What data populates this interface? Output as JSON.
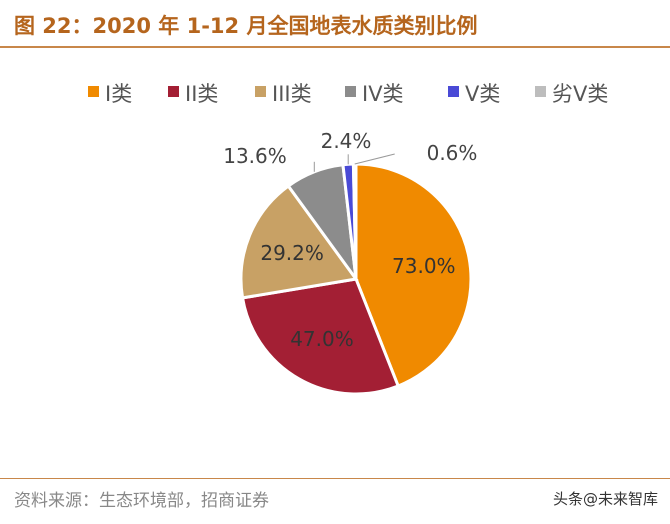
{
  "title": "图 22：2020 年 1-12 月全国地表水质类别比例",
  "source": "资料来源：生态环境部，招商证券",
  "watermark": "头条@未来智库",
  "chart_data": {
    "type": "pie",
    "title": "",
    "legend_position": "top",
    "categories": [
      "I类",
      "II类",
      "III类",
      "IV类",
      "V类",
      "劣V类"
    ],
    "values": [
      73.0,
      47.0,
      29.2,
      13.6,
      2.4,
      0.6
    ],
    "labels": [
      "73.0%",
      "47.0%",
      "29.2%",
      "13.6%",
      "2.4%",
      "0.6%"
    ],
    "colors": [
      "#f08a00",
      "#a31f34",
      "#c8a165",
      "#8c8c8c",
      "#4a4ad6",
      "#bdbdbd"
    ]
  }
}
